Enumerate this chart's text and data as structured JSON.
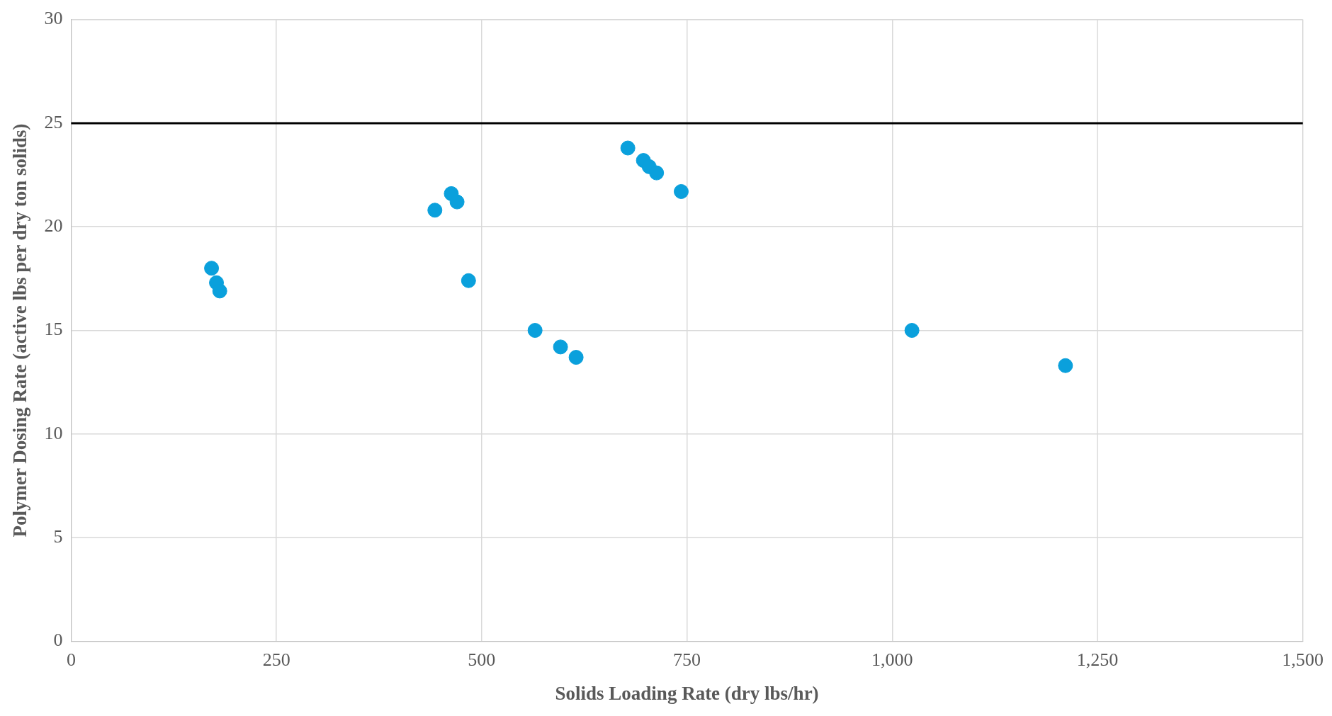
{
  "chart_data": {
    "type": "scatter",
    "xlabel": "Solids Loading Rate (dry lbs/hr)",
    "ylabel": "Polymer Dosing Rate (active lbs per dry ton solids)",
    "x": [
      171,
      177,
      181,
      443,
      463,
      470,
      484,
      565,
      596,
      615,
      678,
      697,
      704,
      713,
      743,
      1024,
      1211
    ],
    "values": [
      18.0,
      17.3,
      16.9,
      20.8,
      21.6,
      21.2,
      17.4,
      15.0,
      14.2,
      13.7,
      23.8,
      23.2,
      22.9,
      22.6,
      21.7,
      15.0,
      13.3
    ],
    "color": "#0aa0dc",
    "marker": "circle",
    "xlim": [
      0,
      1500
    ],
    "xticks": [
      0,
      250,
      500,
      750,
      {
        "value": 1000,
        "label": "1,000"
      },
      {
        "value": 1250,
        "label": "1,250"
      },
      {
        "value": 1500,
        "label": "1,500"
      }
    ],
    "ylim": [
      0,
      30
    ],
    "yticks": [
      0,
      5,
      10,
      15,
      20,
      25,
      30
    ],
    "grid": true,
    "ref_lines": [
      {
        "axis": "y",
        "value": 25,
        "color": "#000000"
      }
    ]
  }
}
